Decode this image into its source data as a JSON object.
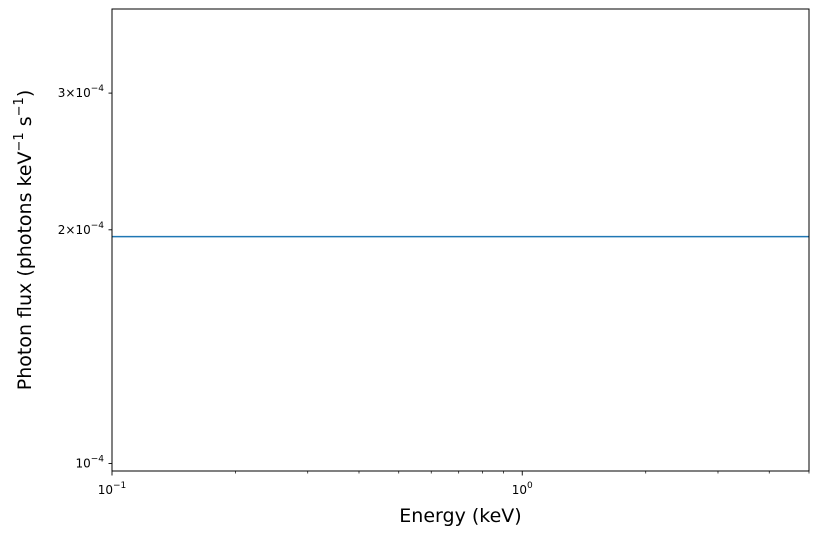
{
  "chart_data": {
    "type": "line",
    "title": "",
    "xlabel": "Energy (keV)",
    "ylabel": {
      "prefix": "Photon flux (photons keV",
      "sup1": "−1",
      "middle": " s",
      "sup2": "−1",
      "suffix": ")"
    },
    "xscale": "log",
    "yscale": "log",
    "xlim": [
      0.1,
      5.0
    ],
    "ylim": [
      9.78e-05,
      0.000385
    ],
    "x_major_ticks": [
      {
        "value": 0.1,
        "base": "10",
        "exp": "−1"
      },
      {
        "value": 1.0,
        "base": "10",
        "exp": "0"
      }
    ],
    "x_minor_ticks": [
      0.2,
      0.3,
      0.4,
      0.5,
      0.6,
      0.7,
      0.8,
      0.9,
      2,
      3,
      4,
      5
    ],
    "y_ticks": [
      {
        "value": 0.0001,
        "prefix": "",
        "base": "10",
        "exp": "−4"
      },
      {
        "value": 0.0002,
        "prefix": "2×",
        "base": "10",
        "exp": "−4"
      },
      {
        "value": 0.0003,
        "prefix": "3×",
        "base": "10",
        "exp": "−4"
      }
    ],
    "grid": false,
    "series": [
      {
        "color": "#1f77b4",
        "x": [
          0.1,
          5.0
        ],
        "y": [
          0.000196,
          0.000196
        ]
      }
    ]
  }
}
